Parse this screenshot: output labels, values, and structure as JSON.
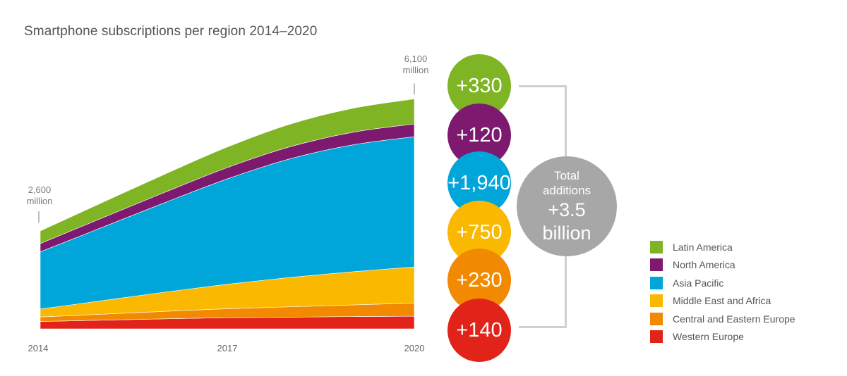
{
  "chart_data": {
    "type": "area",
    "title": "Smartphone subscriptions per region 2014–2020",
    "x": [
      2014,
      2015,
      2016,
      2017,
      2018,
      2019,
      2020
    ],
    "x_ticks": [
      "2014",
      "2017",
      "2020"
    ],
    "ylim": [
      0,
      6100
    ],
    "stacked": true,
    "series": [
      {
        "name": "Western Europe",
        "color": "#e2231a",
        "values": [
          195,
          230,
          265,
          295,
          310,
          325,
          335
        ]
      },
      {
        "name": "Central and Eastern Europe",
        "color": "#f18a00",
        "values": [
          120,
          160,
          200,
          240,
          275,
          310,
          350
        ]
      },
      {
        "name": "Middle East and Africa",
        "color": "#fab800",
        "values": [
          210,
          360,
          510,
          650,
          780,
          880,
          960
        ]
      },
      {
        "name": "Asia Pacific",
        "color": "#00a5d9",
        "values": [
          1520,
          1950,
          2380,
          2800,
          3150,
          3370,
          3460
        ]
      },
      {
        "name": "North America",
        "color": "#7d1a6f",
        "values": [
          220,
          250,
          275,
          300,
          320,
          335,
          340
        ]
      },
      {
        "name": "Latin America",
        "color": "#7fb424",
        "values": [
          335,
          410,
          480,
          545,
          600,
          635,
          665
        ]
      }
    ],
    "annotations": [
      {
        "value": "2,600",
        "unit": "million"
      },
      {
        "value": "6,100",
        "unit": "million"
      }
    ],
    "additions": [
      {
        "region": "Latin America",
        "label": "+330",
        "color": "#7fb424"
      },
      {
        "region": "North America",
        "label": "+120",
        "color": "#7d1a6f"
      },
      {
        "region": "Asia Pacific",
        "label": "+1,940",
        "color": "#00a5d9"
      },
      {
        "region": "Middle East and Africa",
        "label": "+750",
        "color": "#fab800"
      },
      {
        "region": "Central and Eastern Europe",
        "label": "+230",
        "color": "#f18a00"
      },
      {
        "region": "Western Europe",
        "label": "+140",
        "color": "#e2231a"
      }
    ],
    "total": {
      "line1": "Total",
      "line2": "additions",
      "line3": "+3.5",
      "line4": "billion",
      "color": "#a7a7a7"
    },
    "legend": {
      "position": "bottom-right",
      "items": [
        {
          "label": "Latin America",
          "color": "#7fb424"
        },
        {
          "label": "North America",
          "color": "#7d1a6f"
        },
        {
          "label": "Asia Pacific",
          "color": "#00a5d9"
        },
        {
          "label": "Middle East and Africa",
          "color": "#fab800"
        },
        {
          "label": "Central and Eastern Europe",
          "color": "#f18a00"
        },
        {
          "label": "Western Europe",
          "color": "#e2231a"
        }
      ]
    }
  }
}
